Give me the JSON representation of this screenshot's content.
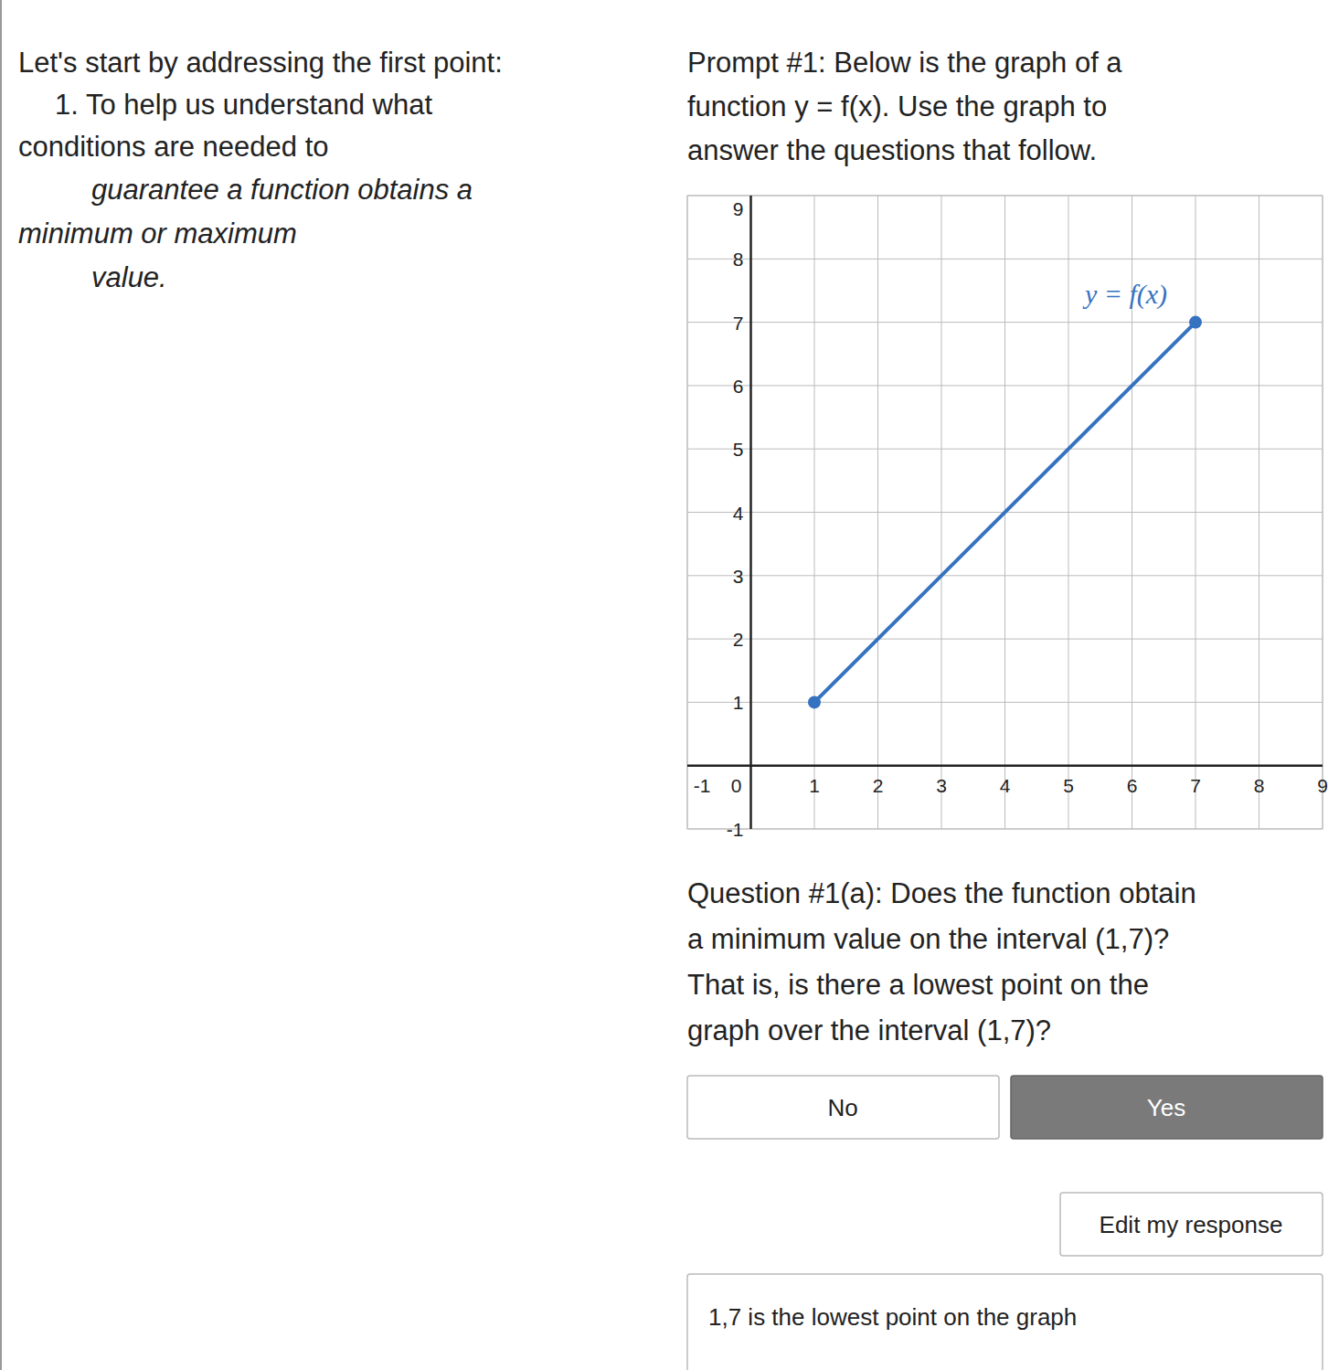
{
  "intro": {
    "heading": "Let's start by addressing the first point:",
    "lines": [
      "1. To help us understand what",
      "conditions are needed to",
      "guarantee a function obtains a",
      "minimum or maximum",
      "value."
    ]
  },
  "prompt": {
    "lines": [
      "Prompt #1: Below is the graph of a",
      "function y = f(x). Use the graph to",
      "answer the questions that follow."
    ]
  },
  "chart_data": {
    "type": "line",
    "x": [
      1,
      7
    ],
    "series": [
      {
        "name": "y = f(x)",
        "color": "#3572c0",
        "values": [
          1,
          7
        ],
        "marker": "circle"
      }
    ],
    "xlim": [
      -1,
      9
    ],
    "ylim": [
      -1,
      9
    ],
    "xticks": [
      -1,
      0,
      1,
      2,
      3,
      4,
      5,
      6,
      7,
      8,
      9
    ],
    "yticks": [
      -1,
      1,
      2,
      3,
      4,
      5,
      6,
      7,
      8,
      9
    ],
    "grid": true
  },
  "question": {
    "lines": [
      "Question #1(a): Does the function obtain",
      "a minimum value on the interval (1,7)?",
      "That is, is there a lowest point on the",
      "graph over the interval (1,7)?"
    ]
  },
  "buttons": [
    "No",
    "Yes"
  ],
  "edit_button": "Edit my response",
  "response": "1,7 is the lowest point on the graph"
}
